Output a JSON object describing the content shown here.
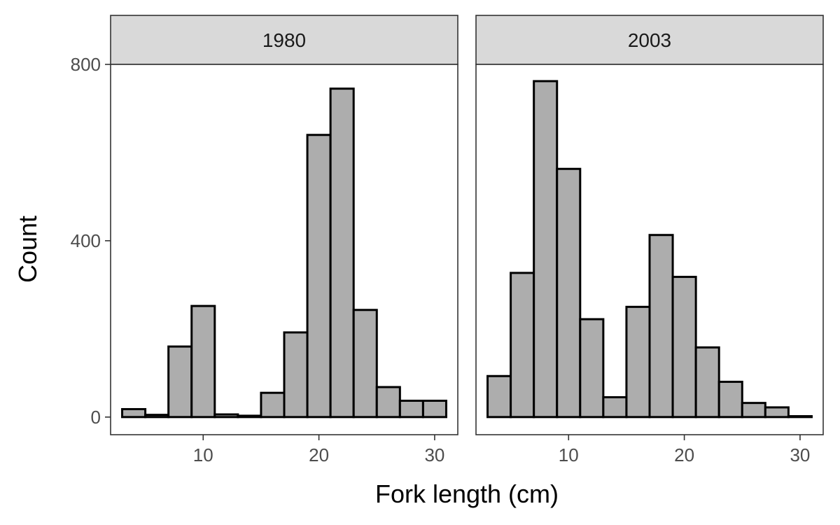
{
  "chart_data": {
    "type": "bar",
    "subtype": "faceted-histogram",
    "xlabel": "Fork length (cm)",
    "ylabel": "Count",
    "xlim": [
      2,
      32
    ],
    "ylim": [
      -40,
      800
    ],
    "x_ticks": [
      10,
      20,
      30
    ],
    "y_ticks": [
      0,
      400,
      800
    ],
    "bin_width": 2,
    "bin_starts": [
      3,
      5,
      7,
      9,
      11,
      13,
      15,
      17,
      19,
      21,
      23,
      25,
      27,
      29
    ],
    "grid": false,
    "bar_fill": "#adadad",
    "bar_stroke": "#000000",
    "facets": [
      {
        "label": "1980",
        "values": [
          18,
          5,
          160,
          252,
          6,
          3,
          55,
          192,
          640,
          745,
          243,
          68,
          37,
          37
        ]
      },
      {
        "label": "2003",
        "values": [
          93,
          327,
          762,
          563,
          222,
          45,
          250,
          413,
          318,
          158,
          80,
          32,
          22,
          2
        ]
      }
    ]
  }
}
